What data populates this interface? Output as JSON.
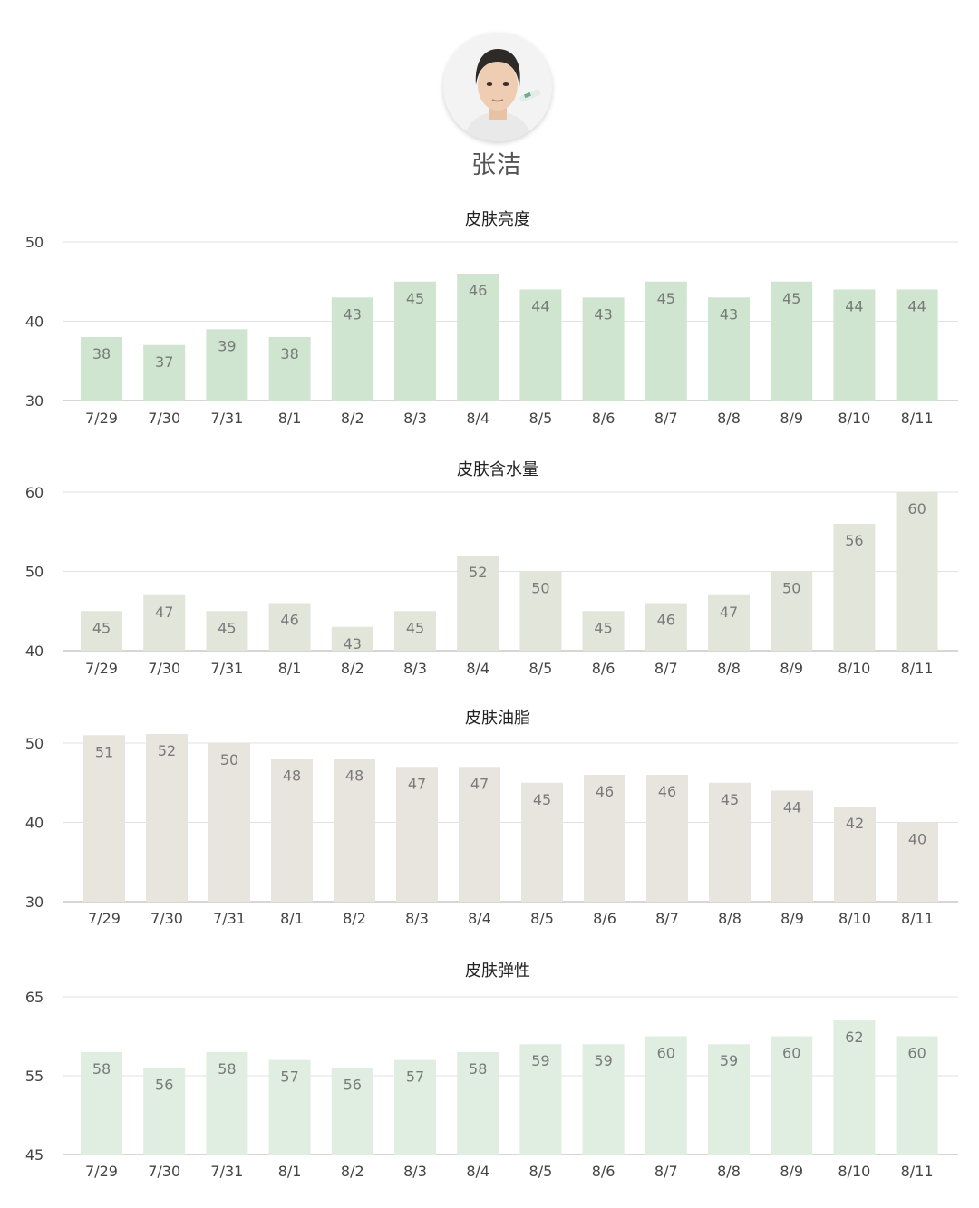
{
  "profile": {
    "name": "张洁",
    "avatar_icon": "person-face-photo"
  },
  "chart_data": [
    {
      "type": "bar",
      "title": "皮肤亮度",
      "categories": [
        "7/29",
        "7/30",
        "7/31",
        "8/1",
        "8/2",
        "8/3",
        "8/4",
        "8/5",
        "8/6",
        "8/7",
        "8/8",
        "8/9",
        "8/10",
        "8/11"
      ],
      "values": [
        38,
        37,
        39,
        38,
        43,
        45,
        46,
        44,
        43,
        45,
        43,
        45,
        44,
        44
      ],
      "ylim": [
        30,
        50
      ],
      "yticks": [
        30,
        40,
        50
      ],
      "grid": true,
      "bar_color": "#cfe5cf"
    },
    {
      "type": "bar",
      "title": "皮肤含水量",
      "categories": [
        "7/29",
        "7/30",
        "7/31",
        "8/1",
        "8/2",
        "8/3",
        "8/4",
        "8/5",
        "8/6",
        "8/7",
        "8/8",
        "8/9",
        "8/10",
        "8/11"
      ],
      "values": [
        45,
        47,
        45,
        46,
        43,
        45,
        52,
        50,
        45,
        46,
        47,
        50,
        56,
        60
      ],
      "ylim": [
        40,
        60
      ],
      "yticks": [
        40,
        50,
        60
      ],
      "grid": true,
      "bar_color": "#e2e5da"
    },
    {
      "type": "bar",
      "title": "皮肤油脂",
      "categories": [
        "7/29",
        "7/30",
        "7/31",
        "8/1",
        "8/2",
        "8/3",
        "8/4",
        "8/5",
        "8/6",
        "8/7",
        "8/8",
        "8/9",
        "8/10",
        "8/11"
      ],
      "values": [
        51,
        52,
        50,
        48,
        48,
        47,
        47,
        45,
        46,
        46,
        45,
        44,
        42,
        40
      ],
      "ylim": [
        30,
        50
      ],
      "yticks": [
        30,
        40,
        50
      ],
      "grid": true,
      "bar_color": "#e8e5df"
    },
    {
      "type": "bar",
      "title": "皮肤弹性",
      "categories": [
        "7/29",
        "7/30",
        "7/31",
        "8/1",
        "8/2",
        "8/3",
        "8/4",
        "8/5",
        "8/6",
        "8/7",
        "8/8",
        "8/9",
        "8/10",
        "8/11"
      ],
      "values": [
        58,
        56,
        58,
        57,
        56,
        57,
        58,
        59,
        59,
        60,
        59,
        60,
        62,
        60
      ],
      "ylim": [
        45,
        65
      ],
      "yticks": [
        45,
        55,
        65
      ],
      "grid": true,
      "bar_color": "#dfeee0"
    }
  ]
}
